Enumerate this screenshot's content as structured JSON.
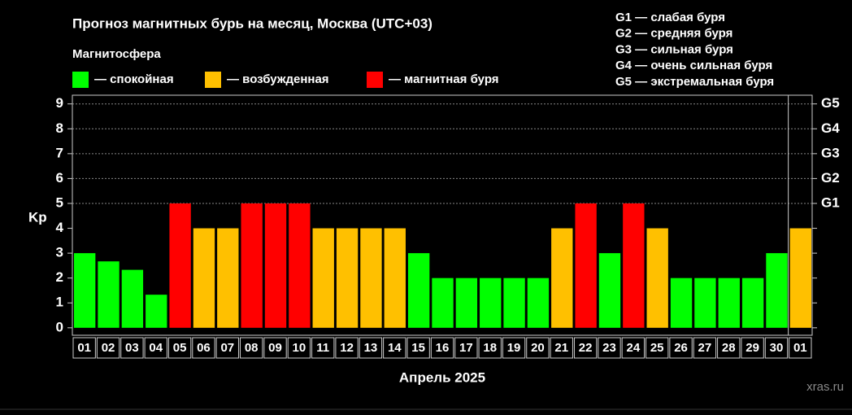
{
  "chart_data": {
    "type": "bar",
    "title": "Прогноз магнитных бурь на месяц, Москва (UTC+03)",
    "legend_title": "Магнитосфера",
    "legend": [
      {
        "label": "— спокойная",
        "color": "#00ff00"
      },
      {
        "label": "— возбужденная",
        "color": "#ffc000"
      },
      {
        "label": "— магнитная буря",
        "color": "#ff0000"
      }
    ],
    "storm_legend": [
      "G1 — слабая буря",
      "G2 — средняя буря",
      "G3 — сильная буря",
      "G4 — очень сильная буря",
      "G5 — экстремальная буря"
    ],
    "ylabel": "Kp",
    "xlabel": "Апрель 2025",
    "watermark": "xras.ru",
    "categories": [
      "01",
      "02",
      "03",
      "04",
      "05",
      "06",
      "07",
      "08",
      "09",
      "10",
      "11",
      "12",
      "13",
      "14",
      "15",
      "16",
      "17",
      "18",
      "19",
      "20",
      "21",
      "22",
      "23",
      "24",
      "25",
      "26",
      "27",
      "28",
      "29",
      "30",
      "01"
    ],
    "values": [
      3,
      2.67,
      2.33,
      1.33,
      5,
      4,
      4,
      5,
      5,
      5,
      4,
      4,
      4,
      4,
      3,
      2,
      2,
      2,
      2,
      2,
      4,
      5,
      3,
      5,
      4,
      2,
      2,
      2,
      2,
      3,
      4
    ],
    "colors": [
      "#00ff00",
      "#00ff00",
      "#00ff00",
      "#00ff00",
      "#ff0000",
      "#ffc000",
      "#ffc000",
      "#ff0000",
      "#ff0000",
      "#ff0000",
      "#ffc000",
      "#ffc000",
      "#ffc000",
      "#ffc000",
      "#00ff00",
      "#00ff00",
      "#00ff00",
      "#00ff00",
      "#00ff00",
      "#00ff00",
      "#ffc000",
      "#ff0000",
      "#00ff00",
      "#ff0000",
      "#ffc000",
      "#00ff00",
      "#00ff00",
      "#00ff00",
      "#00ff00",
      "#00ff00",
      "#ffc000"
    ],
    "ylim": [
      -0.3,
      9.35
    ],
    "yticks": [
      0,
      1,
      2,
      3,
      4,
      5,
      6,
      7,
      8,
      9
    ],
    "y2lim": [
      -0.3,
      9.35
    ],
    "y2ticks": [
      {
        "value": 5,
        "label": "G1"
      },
      {
        "value": 6,
        "label": "G2"
      },
      {
        "value": 7,
        "label": "G3"
      },
      {
        "value": 8,
        "label": "G4"
      },
      {
        "value": 9,
        "label": "G5"
      }
    ],
    "grid": true
  }
}
